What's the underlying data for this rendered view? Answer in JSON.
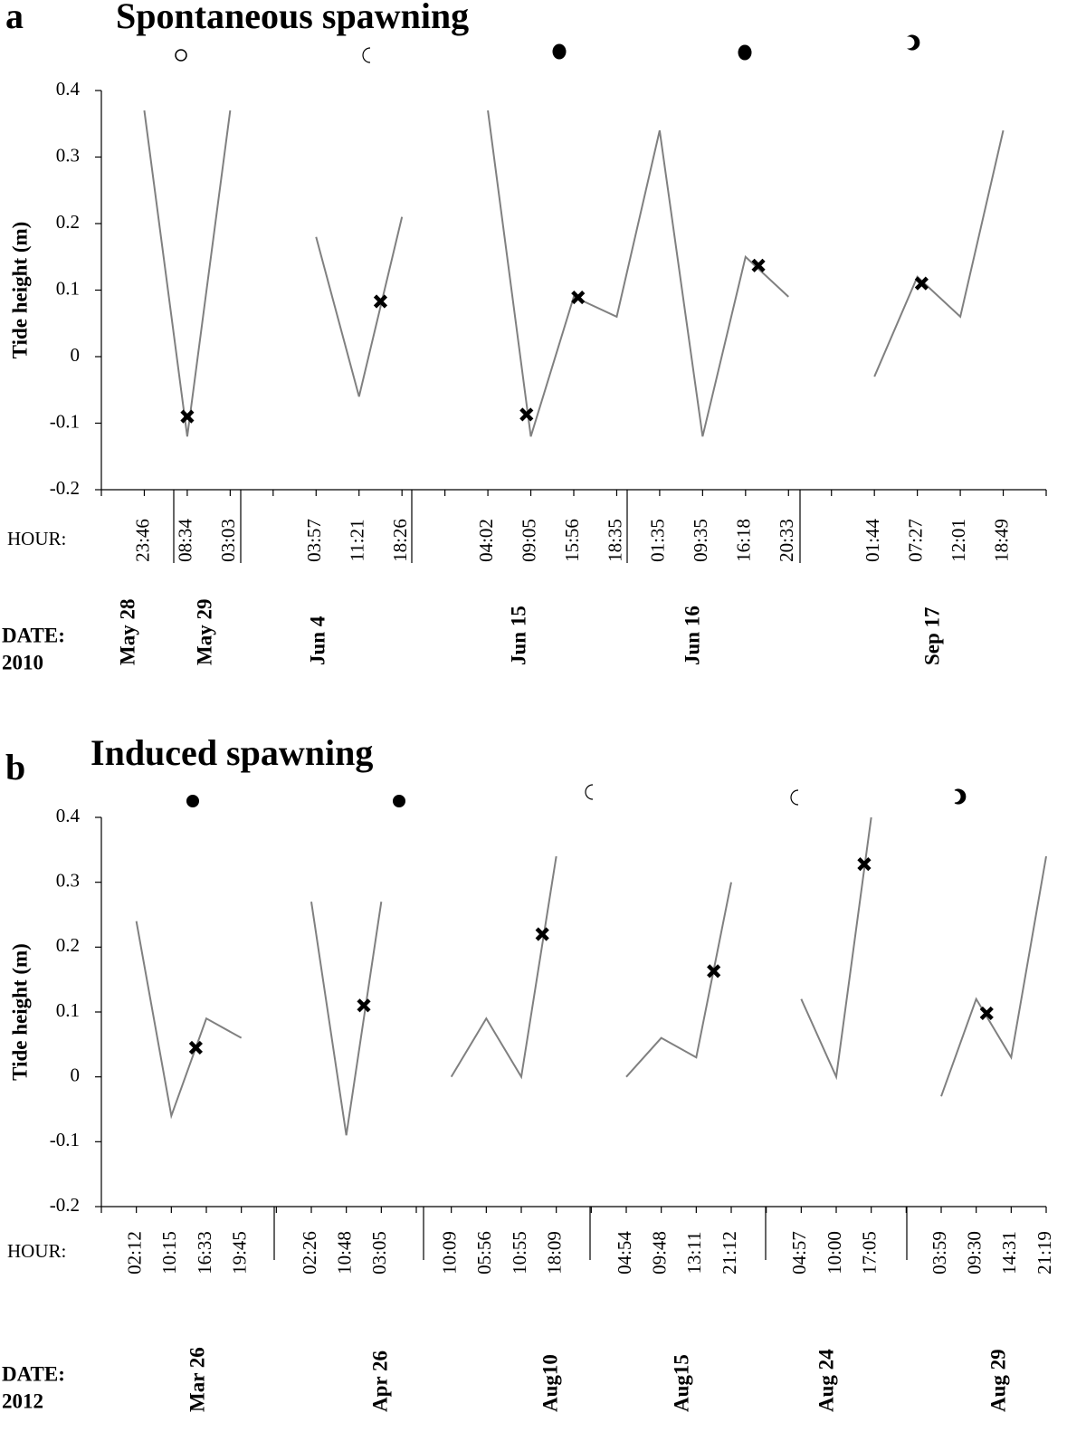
{
  "chart_data": [
    {
      "type": "line",
      "panel": "a",
      "title": "Spontaneous spawning",
      "ylabel": "Tide height  (m)",
      "hour_label": "HOUR:",
      "date_label": "DATE:",
      "year": "2010",
      "categories": [
        "23:46",
        "08:34",
        "03:03",
        null,
        "03:57",
        "11:21",
        "18:26",
        null,
        "04:02",
        "09:05",
        "15:56",
        "18:35",
        "01:35",
        "09:35",
        "16:18",
        "20:33",
        null,
        "01:44",
        "07:27",
        "12:01",
        "18:49"
      ],
      "values": [
        0.37,
        -0.12,
        0.37,
        null,
        0.18,
        -0.06,
        0.21,
        null,
        0.37,
        -0.12,
        0.09,
        0.06,
        0.34,
        -0.12,
        0.15,
        0.09,
        null,
        -0.03,
        0.12,
        0.06,
        0.34
      ],
      "color": "#808080",
      "markers": {
        "x": [
          1.0,
          5.5,
          8.9,
          10.1,
          14.3,
          18.1
        ],
        "values": [
          -0.09,
          0.083,
          -0.087,
          0.089,
          0.137,
          0.11
        ],
        "color": "#000000"
      },
      "dates": [
        "May  28",
        "May  29",
        "Jun  4",
        "Jun  15",
        "Jun  16",
        "Sep  17"
      ],
      "xlim": [
        -1,
        21
      ],
      "ylim": [
        -0.2,
        0.4
      ],
      "yticks": [
        0.4,
        0.3,
        0.2,
        0.1,
        0,
        -0.1,
        -0.2
      ]
    },
    {
      "type": "line",
      "panel": "b",
      "title": "Induced spawning",
      "ylabel": "Tide height (m)",
      "hour_label": "HOUR:",
      "date_label": "DATE:",
      "year": "2012",
      "categories": [
        "02:12",
        "10:15",
        "16:33",
        "19:45",
        null,
        "02:26",
        "10:48",
        "03:05",
        null,
        "10:09",
        "05:56",
        "10:55",
        "18:09",
        null,
        "04:54",
        "09:48",
        "13:11",
        "21:12",
        null,
        "04:57",
        "10:00",
        "17:05",
        null,
        "03:59",
        "09:30",
        "14:31",
        "21:19"
      ],
      "values": [
        0.24,
        -0.06,
        0.09,
        0.06,
        null,
        0.27,
        -0.09,
        0.27,
        null,
        0,
        0.09,
        0,
        0.34,
        null,
        0,
        0.06,
        0.03,
        0.3,
        null,
        0.12,
        0,
        0.4,
        null,
        -0.03,
        0.12,
        0.03,
        0.34
      ],
      "color": "#808080",
      "markers": {
        "x": [
          1.7,
          6.5,
          11.6,
          16.5,
          20.8,
          24.3
        ],
        "values": [
          0.045,
          0.11,
          0.22,
          0.163,
          0.328,
          0.098
        ],
        "color": "#000000"
      },
      "dates": [
        "Mar 26",
        "Apr 26",
        "Aug10",
        "Aug15",
        "Aug  24",
        "Aug  29"
      ],
      "xlim": [
        -1,
        26
      ],
      "ylim": [
        -0.2,
        0.4
      ],
      "yticks": [
        0.4,
        0.3,
        0.2,
        0.1,
        0,
        -0.1,
        -0.2
      ]
    }
  ]
}
